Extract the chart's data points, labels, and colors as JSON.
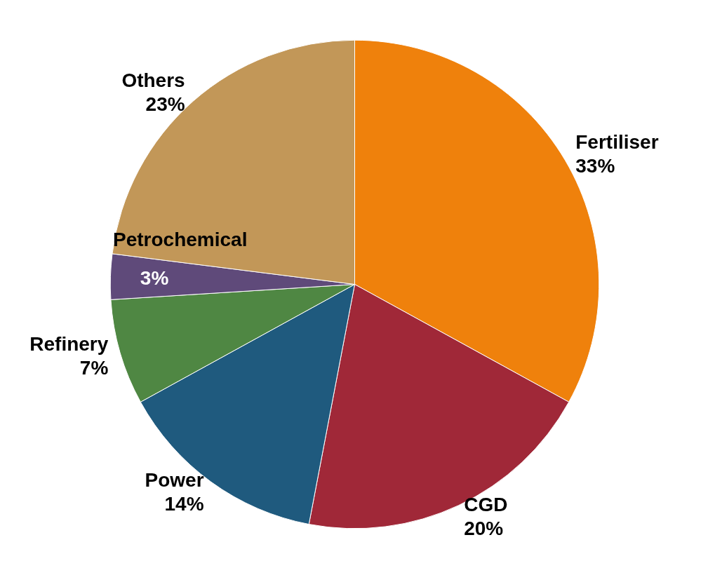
{
  "chart_data": {
    "type": "pie",
    "categories": [
      "Fertiliser",
      "CGD",
      "Power",
      "Refinery",
      "Petrochemical",
      "Others"
    ],
    "values": [
      33,
      20,
      14,
      7,
      3,
      23
    ],
    "colors": [
      "#ef810c",
      "#a02838",
      "#1f5a7e",
      "#4f8743",
      "#5f4a7a",
      "#c29758"
    ],
    "value_labels": [
      "33%",
      "20%",
      "14%",
      "7%",
      "3%",
      "23%"
    ],
    "legend": false
  }
}
